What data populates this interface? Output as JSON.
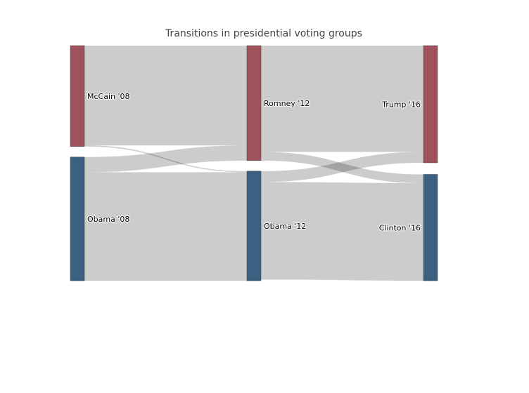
{
  "chart_data": {
    "type": "sankey",
    "title": "Transitions in presidential voting groups",
    "link_color": "#000000",
    "link_opacity": 0.2,
    "nodes": [
      {
        "id": "mccain08",
        "label": "McCain '08",
        "column": 0,
        "color": "#a0525c"
      },
      {
        "id": "obama08",
        "label": "Obama '08",
        "column": 0,
        "color": "#3b6082"
      },
      {
        "id": "romney12",
        "label": "Romney '12",
        "column": 1,
        "color": "#a0525c"
      },
      {
        "id": "obama12",
        "label": "Obama '12",
        "column": 1,
        "color": "#3b6082"
      },
      {
        "id": "trump16",
        "label": "Trump '16",
        "column": 2,
        "color": "#a0525c"
      },
      {
        "id": "clinton16",
        "label": "Clinton '16",
        "column": 2,
        "color": "#3b6082"
      }
    ],
    "links": [
      {
        "source": "mccain08",
        "target": "romney12",
        "value": 46
      },
      {
        "source": "mccain08",
        "target": "obama12",
        "value": 0.5
      },
      {
        "source": "obama08",
        "target": "romney12",
        "value": 7
      },
      {
        "source": "obama08",
        "target": "obama12",
        "value": 50
      },
      {
        "source": "romney12",
        "target": "trump16",
        "value": 49
      },
      {
        "source": "romney12",
        "target": "clinton16",
        "value": 4
      },
      {
        "source": "obama12",
        "target": "trump16",
        "value": 5
      },
      {
        "source": "obama12",
        "target": "clinton16",
        "value": 45
      }
    ]
  }
}
